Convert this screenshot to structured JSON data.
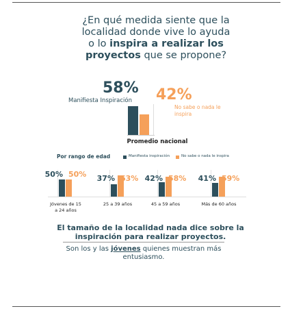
{
  "question": [
    "¿En qué medida siente que la localidad donde vive lo ayuda o lo ",
    "inspira a realizar los proyectos",
    " que se propone?"
  ],
  "chart_data": [
    {
      "type": "bar",
      "title": "Promedio nacional",
      "categories": [
        null
      ],
      "series": [
        {
          "name": "Manifiesta Inspiración",
          "color": "#2d4f5c",
          "values": [
            58
          ],
          "value_labels": [
            "58%"
          ]
        },
        {
          "name": "No sabe o nada le inspira",
          "color": "#f5a05a",
          "values": [
            42
          ],
          "value_labels": [
            "42%"
          ]
        }
      ]
    },
    {
      "type": "bar",
      "title": "Por rango de edad",
      "categories": [
        "Jóvenes de 15 a 24 años",
        "25 a 39 años",
        "45 a 59 años",
        "Más de 60 años"
      ],
      "series": [
        {
          "name": "Manifiesta inspiración",
          "color": "#2d4f5c",
          "values": [
            50,
            37,
            42,
            41
          ],
          "value_labels": [
            "50%",
            "37%",
            "42%",
            "41%"
          ]
        },
        {
          "name": "No sabe o nada le inspira",
          "color": "#f5a05a",
          "values": [
            50,
            63,
            58,
            59
          ],
          "value_labels": [
            "50%",
            "63%",
            "58%",
            "59%"
          ]
        }
      ]
    }
  ],
  "conclusion": "El tamaño de la localidad nada dice sobre la inspiración para realizar proyectos.",
  "note": [
    "Son los y las ",
    "jóvenes",
    " quienes muestran más entusiasmo."
  ]
}
